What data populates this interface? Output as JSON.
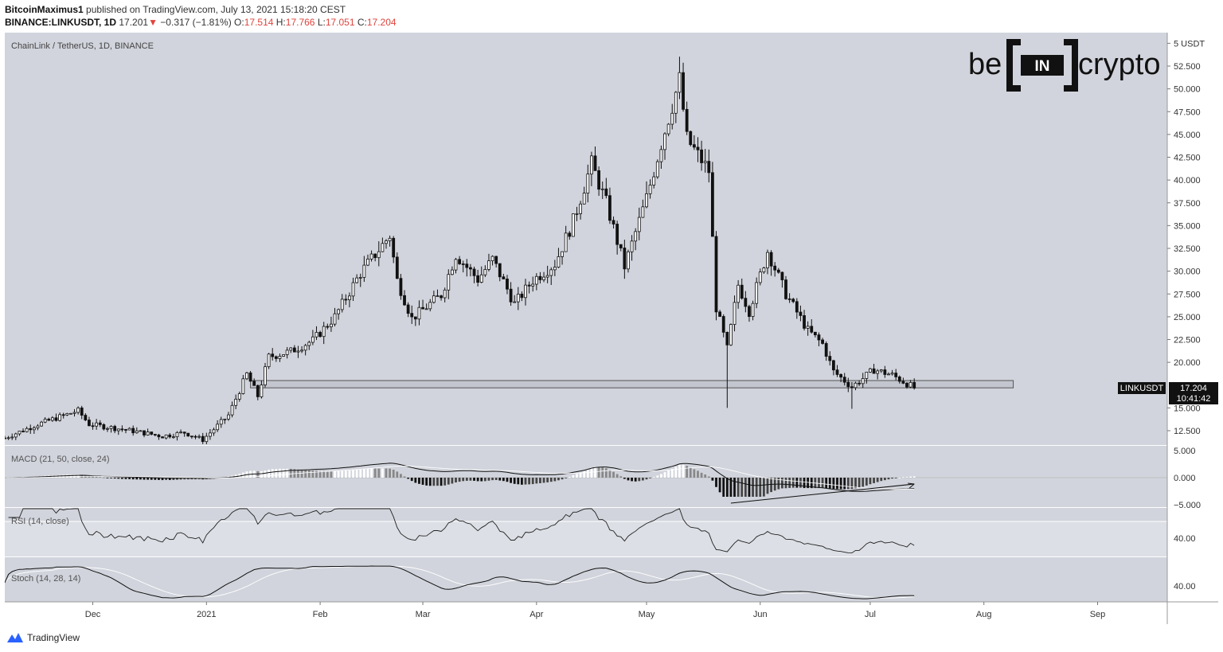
{
  "header": {
    "author": "BitcoinMaximus1",
    "published_text": "published on TradingView.com, July 13, 2021 15:18:20 CEST",
    "symbol": "BINANCE:LINKUSDT, 1D",
    "last": "17.201",
    "arrow": "▼",
    "change": "−0.317 (−1.81%)",
    "o_label": "O:",
    "o_value": "17.514",
    "h_label": "H:",
    "h_value": "17.766",
    "l_label": "L:",
    "l_value": "17.051",
    "c_label": "C:",
    "c_value": "17.204"
  },
  "pair_label": "ChainLink / TetherUS, 1D, BINANCE",
  "logo": {
    "left": "be",
    "middle": "IN",
    "right": "crypto"
  },
  "price_axis": {
    "ticks": [
      "5 USDT",
      "52.500",
      "50.000",
      "47.500",
      "45.000",
      "42.500",
      "40.000",
      "37.500",
      "35.000",
      "32.500",
      "30.000",
      "27.500",
      "25.000",
      "22.500",
      "20.000",
      "15.000",
      "12.500"
    ],
    "tick_values": [
      55,
      52.5,
      50,
      47.5,
      45,
      42.5,
      40,
      37.5,
      35,
      32.5,
      30,
      27.5,
      25,
      22.5,
      20,
      15,
      12.5
    ]
  },
  "price_tag": {
    "symbol": "LINKUSDT",
    "price": "17.204",
    "countdown": "10:41:42"
  },
  "macd": {
    "label": "MACD (21, 50, close, 24)",
    "ticks": [
      "5.000",
      "0.000",
      "−5.000"
    ]
  },
  "rsi": {
    "label": "RSI (14, close)",
    "tick": "40.00"
  },
  "stoch": {
    "label": "Stoch (14, 28, 14)",
    "tick": "40.00"
  },
  "time_axis": [
    "Dec",
    "2021",
    "Feb",
    "Mar",
    "Apr",
    "May",
    "Jun",
    "Jul",
    "Aug",
    "Sep"
  ],
  "footer": {
    "brand": "TradingView"
  },
  "colors": {
    "pane_bg": "#d1d4dc",
    "candle": "#111111",
    "support_zone": "#c3c6ce",
    "tag_bg": "#111111",
    "down_red": "#e0443c",
    "brand_blue": "#2962ff"
  },
  "chart_data": {
    "type": "candlestick",
    "title": "ChainLink / TetherUS, 1D, BINANCE",
    "y_unit": "USDT",
    "ylim": [
      10.5,
      56.5
    ],
    "x_range": [
      "2020-11-07",
      "2021-09-20"
    ],
    "support_zone": {
      "low": 17.2,
      "high": 18.0,
      "from": "2021-01-13",
      "to": "2021-08-09"
    },
    "close_path": [
      [
        "2020-11-07",
        11.7
      ],
      [
        "2020-11-16",
        13.2
      ],
      [
        "2020-11-27",
        14.7
      ],
      [
        "2020-11-30",
        13.2
      ],
      [
        "2020-12-10",
        12.6
      ],
      [
        "2020-12-20",
        11.9
      ],
      [
        "2020-12-26",
        12.3
      ],
      [
        "2020-12-31",
        11.5
      ],
      [
        "2021-01-07",
        14.2
      ],
      [
        "2021-01-12",
        18.7
      ],
      [
        "2021-01-15",
        16.3
      ],
      [
        "2021-01-18",
        20.6
      ],
      [
        "2021-01-24",
        21.2
      ],
      [
        "2021-01-30",
        22.4
      ],
      [
        "2021-02-05",
        25.0
      ],
      [
        "2021-02-12",
        29.8
      ],
      [
        "2021-02-20",
        33.9
      ],
      [
        "2021-02-22",
        29.0
      ],
      [
        "2021-02-26",
        24.8
      ],
      [
        "2021-03-06",
        27.4
      ],
      [
        "2021-03-10",
        31.8
      ],
      [
        "2021-03-16",
        29.1
      ],
      [
        "2021-03-20",
        31.3
      ],
      [
        "2021-03-26",
        26.4
      ],
      [
        "2021-03-31",
        29.0
      ],
      [
        "2021-04-06",
        30.8
      ],
      [
        "2021-04-11",
        35.5
      ],
      [
        "2021-04-16",
        41.8
      ],
      [
        "2021-04-20",
        37.5
      ],
      [
        "2021-04-25",
        30.5
      ],
      [
        "2021-05-01",
        38.0
      ],
      [
        "2021-05-05",
        44.0
      ],
      [
        "2021-05-10",
        51.0
      ],
      [
        "2021-05-12",
        44.5
      ],
      [
        "2021-05-18",
        41.0
      ],
      [
        "2021-05-20",
        26.0
      ],
      [
        "2021-05-23",
        21.5
      ],
      [
        "2021-05-26",
        28.5
      ],
      [
        "2021-05-29",
        25.6
      ],
      [
        "2021-06-03",
        32.2
      ],
      [
        "2021-06-08",
        27.5
      ],
      [
        "2021-06-14",
        23.5
      ],
      [
        "2021-06-18",
        22.0
      ],
      [
        "2021-06-21",
        19.0
      ],
      [
        "2021-06-26",
        17.3
      ],
      [
        "2021-07-02",
        19.2
      ],
      [
        "2021-07-07",
        18.6
      ],
      [
        "2021-07-13",
        17.2
      ]
    ],
    "candle_markers": [
      {
        "date": "2021-05-23",
        "low": 15.0
      },
      {
        "date": "2021-06-26",
        "low": 14.9
      }
    ],
    "macd_histogram_range": [
      -3.5,
      1.6
    ],
    "macd_trendline_note": "Bullish divergence arrow on MACD histogram (Jun–Jul 2021)"
  }
}
